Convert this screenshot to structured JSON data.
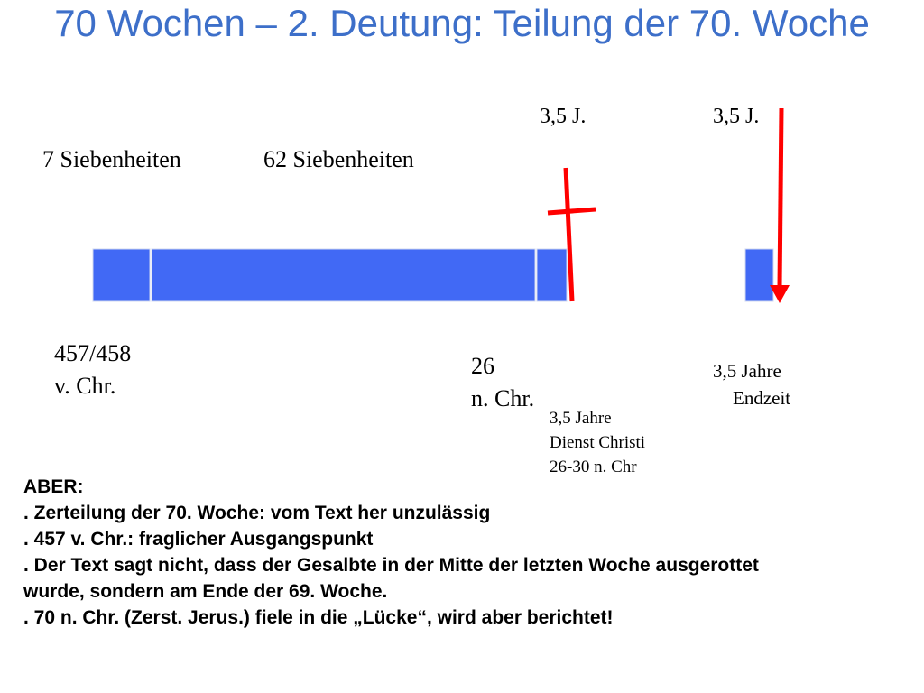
{
  "title": "70 Wochen – 2. Deutung: Teilung der 70. Woche",
  "labels": {
    "half_week_1": "3,5 J.",
    "half_week_2": "3,5 J.",
    "seven": "7 Siebenheiten",
    "sixty_two": "62 Siebenheiten",
    "start_year": "457/458",
    "start_era": "v. Chr.",
    "baptism_year": "26",
    "baptism_era": "n. Chr.",
    "ministry": [
      "3,5 Jahre",
      "Dienst Christi",
      "26-30 n. Chr"
    ],
    "endtime": [
      "3,5 Jahre",
      "Endzeit"
    ]
  },
  "notes": {
    "heading": "ABER:",
    "lines": [
      ". Zerteilung der 70. Woche: vom Text her unzulässig",
      ". 457 v. Chr.: fraglicher Ausgangspunkt",
      ". Der Text sagt nicht, dass der Gesalbte in der Mitte der letzten Woche ausgerottet wurde, sondern am Ende der 69. Woche.",
      ". 70 n. Chr. (Zerst. Jerus.) fiele in die „Lücke“, wird aber berichtet!"
    ]
  }
}
